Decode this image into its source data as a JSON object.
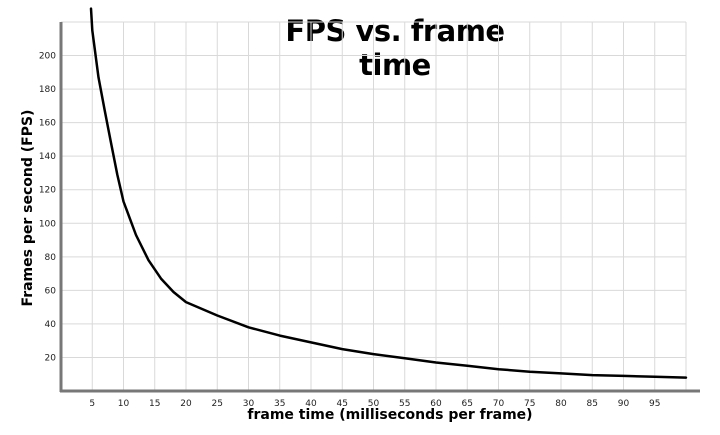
{
  "chart_data": {
    "type": "line",
    "title": "FPS vs. frame time",
    "xlabel": "frame time (milliseconds per frame)",
    "ylabel": "Frames per second (FPS)",
    "xlim": [
      0,
      100
    ],
    "ylim": [
      0,
      220
    ],
    "xticks": [
      5,
      10,
      15,
      20,
      25,
      30,
      35,
      40,
      45,
      50,
      55,
      60,
      65,
      70,
      75,
      80,
      85,
      90,
      95
    ],
    "yticks": [
      20,
      40,
      60,
      80,
      100,
      120,
      140,
      160,
      180,
      200
    ],
    "grid": true,
    "series": [
      {
        "color": "#000000",
        "x": [
          4.8,
          5,
          6,
          7,
          8,
          9,
          10,
          12,
          14,
          16,
          18,
          20,
          25,
          30,
          35,
          40,
          45,
          50,
          55,
          60,
          65,
          70,
          75,
          80,
          85,
          90,
          95,
          100
        ],
        "y": [
          228,
          215,
          187,
          167,
          148,
          129,
          113,
          93,
          78,
          67,
          59,
          53,
          45,
          38,
          33,
          29,
          25,
          22,
          19.5,
          17,
          15,
          13,
          11.5,
          10.5,
          9.5,
          9,
          8.5,
          8
        ]
      }
    ]
  }
}
